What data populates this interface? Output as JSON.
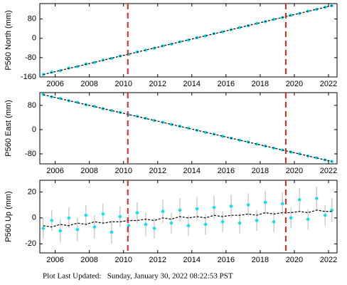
{
  "chart_data": [
    {
      "type": "scatter",
      "ylabel": "P560 North (mm)",
      "color": "#00e5f5",
      "x": [
        2005.3,
        2005.8,
        2006.3,
        2006.8,
        2007.3,
        2007.8,
        2008.3,
        2008.8,
        2009.3,
        2009.8,
        2010.3,
        2010.8,
        2011.3,
        2011.8,
        2012.3,
        2012.8,
        2013.3,
        2013.8,
        2014.3,
        2014.8,
        2015.3,
        2015.8,
        2016.3,
        2016.8,
        2017.3,
        2017.8,
        2018.3,
        2018.8,
        2019.3,
        2019.8,
        2020.3,
        2020.8,
        2021.3,
        2021.8,
        2022.2
      ],
      "values": [
        -150,
        -140,
        -134,
        -123,
        -117,
        -106,
        -100,
        -90,
        -83,
        -73,
        -66,
        -56,
        -49,
        -41,
        -31,
        -24,
        -14,
        -7,
        3,
        10,
        20,
        27,
        36,
        45,
        52,
        62,
        69,
        79,
        86,
        96,
        103,
        113,
        120,
        129,
        135
      ],
      "model": {
        "x": [
          2005.3,
          2022.2
        ],
        "values": [
          -150,
          135.6
        ],
        "color": "#000000"
      },
      "vlines": [
        2010.25,
        2019.5
      ],
      "vline_color": "#e8201e",
      "xlim": [
        2005.1,
        2022.5
      ],
      "xticks": [
        2006,
        2008,
        2010,
        2012,
        2014,
        2016,
        2018,
        2020,
        2022
      ],
      "ylim": [
        -160,
        144
      ],
      "yticks": [
        -160,
        -80,
        0,
        80
      ]
    },
    {
      "type": "scatter",
      "ylabel": "P560 East (mm)",
      "color": "#00e5f5",
      "x": [
        2005.3,
        2005.8,
        2006.3,
        2006.8,
        2007.3,
        2007.8,
        2008.3,
        2008.8,
        2009.3,
        2009.8,
        2010.3,
        2010.8,
        2011.3,
        2011.8,
        2012.3,
        2012.8,
        2013.3,
        2013.8,
        2014.3,
        2014.8,
        2015.3,
        2015.8,
        2016.3,
        2016.8,
        2017.3,
        2017.8,
        2018.3,
        2018.8,
        2019.3,
        2019.8,
        2020.3,
        2020.8,
        2021.3,
        2021.8,
        2022.2
      ],
      "values": [
        116,
        108,
        103,
        95,
        90,
        82,
        77,
        69,
        63,
        57,
        49,
        44,
        37,
        30,
        24,
        17,
        11,
        5,
        -2,
        -9,
        -15,
        -22,
        -28,
        -35,
        -41,
        -48,
        -54,
        -61,
        -67,
        -74,
        -80,
        -87,
        -93,
        -100,
        -105
      ],
      "model": {
        "x": [
          2005.3,
          2022.2
        ],
        "values": [
          115,
          -105
        ],
        "color": "#000000"
      },
      "vlines": [
        2010.25,
        2019.5
      ],
      "vline_color": "#e8201e",
      "xlim": [
        2005.1,
        2022.5
      ],
      "xticks": [
        2006,
        2008,
        2010,
        2012,
        2014,
        2016,
        2018,
        2020,
        2022
      ],
      "ylim": [
        -113,
        122
      ],
      "yticks": [
        -80,
        0,
        80
      ]
    },
    {
      "type": "scatter",
      "ylabel": "P560 Up (mm)",
      "color": "#00e5f5",
      "error_color": "#b4b4b4",
      "x": [
        2005.3,
        2005.8,
        2006.3,
        2006.8,
        2007.3,
        2007.8,
        2008.3,
        2008.8,
        2009.3,
        2009.8,
        2010.3,
        2010.8,
        2011.3,
        2011.8,
        2012.3,
        2012.8,
        2013.3,
        2013.8,
        2014.3,
        2014.8,
        2015.3,
        2015.8,
        2016.3,
        2016.8,
        2017.3,
        2017.8,
        2018.3,
        2018.8,
        2019.3,
        2019.8,
        2020.3,
        2020.8,
        2021.3,
        2021.8,
        2022.2
      ],
      "values": [
        -8,
        -2,
        -10,
        0,
        -9,
        2,
        -7,
        3,
        -11,
        1,
        -6,
        4,
        -5,
        -8,
        5,
        -4,
        6,
        -6,
        7,
        -5,
        8,
        -3,
        9,
        -4,
        10,
        -2,
        12,
        -3,
        11,
        0,
        14,
        -1,
        15,
        2,
        6
      ],
      "errors": [
        8,
        8,
        9,
        8,
        9,
        8,
        9,
        8,
        9,
        8,
        9,
        8,
        9,
        8,
        9,
        8,
        9,
        8,
        9,
        8,
        9,
        8,
        9,
        8,
        9,
        8,
        9,
        8,
        9,
        8,
        9,
        8,
        9,
        8,
        9
      ],
      "model": {
        "x": [
          2005.3,
          2005.8,
          2006.3,
          2006.8,
          2007.3,
          2007.8,
          2008.3,
          2008.8,
          2009.3,
          2009.8,
          2010.3,
          2010.8,
          2011.3,
          2011.8,
          2012.3,
          2012.8,
          2013.3,
          2013.8,
          2014.3,
          2014.8,
          2015.3,
          2015.8,
          2016.3,
          2016.8,
          2017.3,
          2017.8,
          2018.3,
          2018.8,
          2019.3,
          2019.8,
          2020.3,
          2020.8,
          2021.3,
          2021.8,
          2022.2
        ],
        "values": [
          -6,
          -7,
          -5,
          -6,
          -4,
          -5,
          -3,
          -4,
          -3,
          -3,
          -2,
          -2,
          -1,
          -2,
          0,
          -1,
          1,
          0,
          1,
          0,
          2,
          1,
          2,
          2,
          3,
          2,
          4,
          3,
          4,
          4,
          5,
          4,
          6,
          5,
          5
        ],
        "color": "#000000"
      },
      "vlines": [
        2010.25,
        2019.5
      ],
      "vline_color": "#e8201e",
      "xlim": [
        2005.1,
        2022.5
      ],
      "xticks": [
        2006,
        2008,
        2010,
        2012,
        2014,
        2016,
        2018,
        2020,
        2022
      ],
      "ylim": [
        -27,
        29
      ],
      "yticks": [
        -20,
        0,
        20
      ]
    }
  ],
  "footer": "Plot Last Updated:   Sunday, January 30, 2022 08:22:53 PST"
}
